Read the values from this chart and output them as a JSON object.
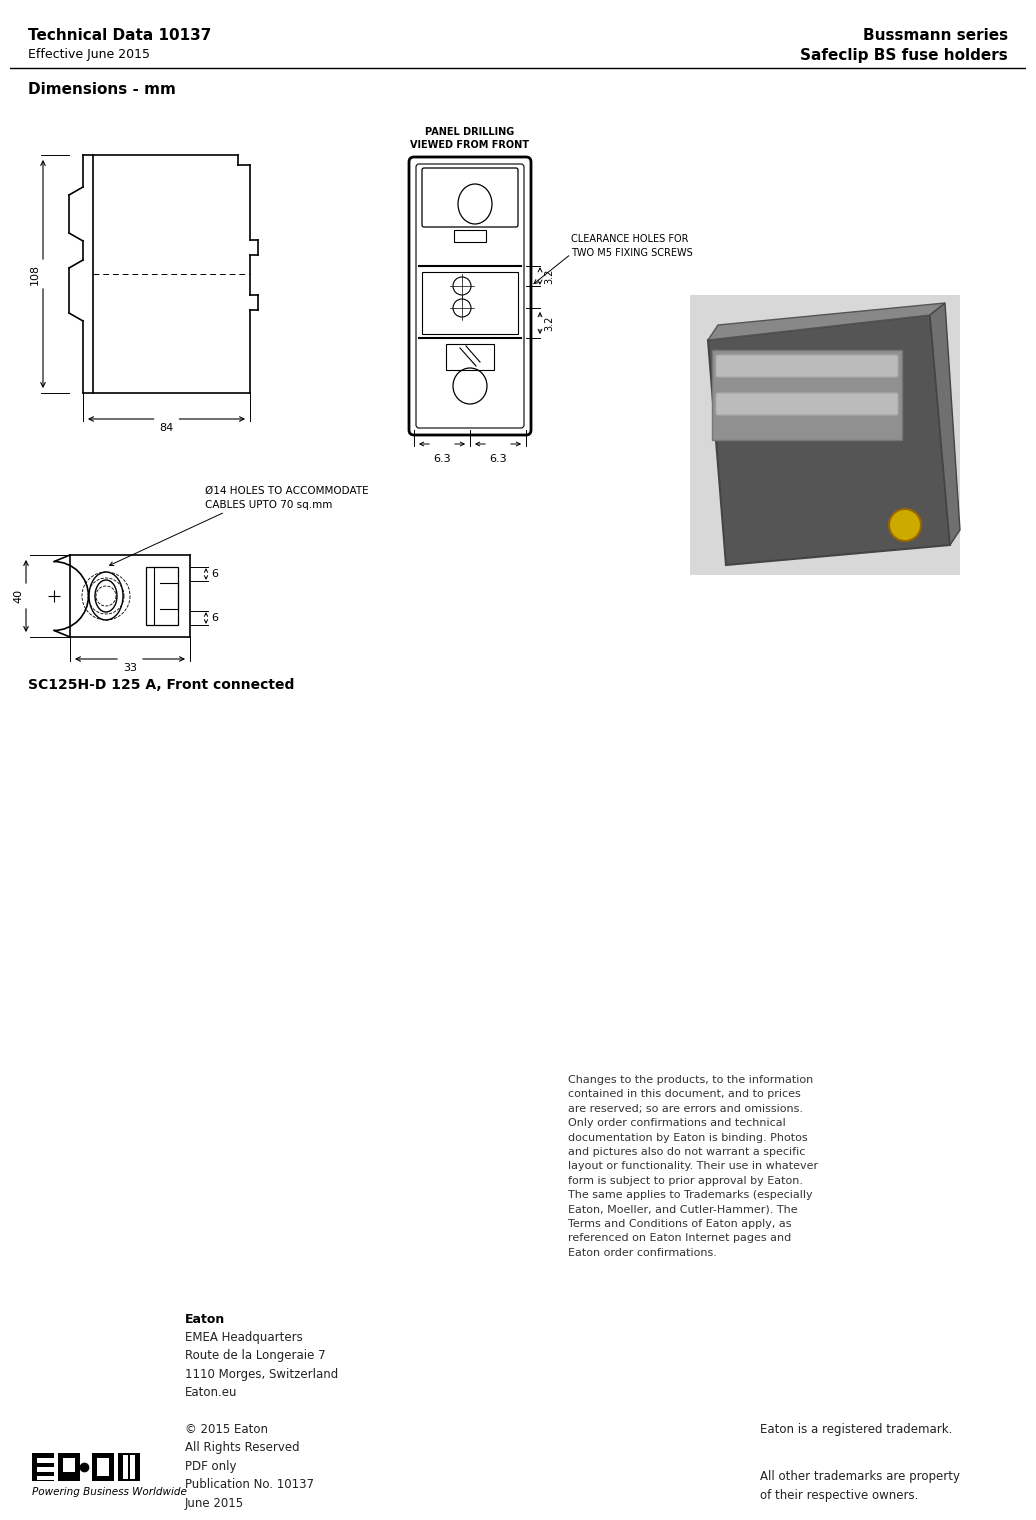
{
  "title_left_line1": "Technical Data 10137",
  "title_left_line2": "Effective June 2015",
  "title_right_line1": "Bussmann series",
  "title_right_line2": "Safeclip BS fuse holders",
  "section_title": "Dimensions - mm",
  "product_label": "SC125H-D 125 A, Front connected",
  "panel_drilling_label": "PANEL DRILLING\nVIEWED FROM FRONT",
  "clearance_holes_label": "CLEARANCE HOLES FOR\nTWO M5 FIXING SCREWS",
  "dia14_label": "Ø14 HOLES TO ACCOMMODATE\nCABLES UPTO 70 sq.mm",
  "dim_84": "84",
  "dim_108": "108",
  "dim_33": "33",
  "dim_40": "40",
  "dim_6_3a": "6.3",
  "dim_6_3b": "6.3",
  "dim_3_2a": "3.2",
  "dim_3_2b": "3.2",
  "dim_6a": "6",
  "dim_6b": "6",
  "footer_eaton_bold": "Eaton",
  "footer_eaton_address": "EMEA Headquarters\nRoute de la Longeraie 7\n1110 Morges, Switzerland\nEaton.eu",
  "footer_copy": "© 2015 Eaton\nAll Rights Reserved\nPDF only\nPublication No. 10137\nJune 2015",
  "footer_trademark1": "Eaton is a registered trademark.",
  "footer_trademark2": "All other trademarks are property\nof their respective owners.",
  "footer_powering": "Powering Business Worldwide",
  "disclaimer": "Changes to the products, to the information\ncontained in this document, and to prices\nare reserved; so are errors and omissions.\nOnly order confirmations and technical\ndocumentation by Eaton is binding. Photos\nand pictures also do not warrant a specific\nlayout or functionality. Their use in whatever\nform is subject to prior approval by Eaton.\nThe same applies to Trademarks (especially\nEaton, Moeller, and Cutler-Hammer). The\nTerms and Conditions of Eaton apply, as\nreferenced on Eaton Internet pages and\nEaton order confirmations.",
  "bg_color": "#ffffff",
  "line_color": "#000000"
}
